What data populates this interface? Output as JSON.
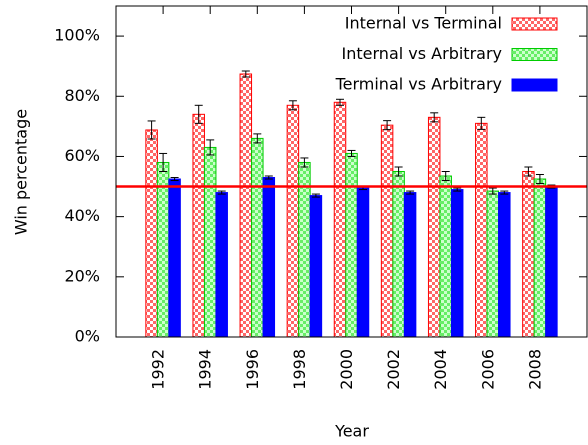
{
  "chart_data": {
    "type": "bar",
    "xlabel": "Year",
    "ylabel": "Win percentage",
    "categories": [
      "1992",
      "1994",
      "1996",
      "1998",
      "2000",
      "2002",
      "2004",
      "2006",
      "2008"
    ],
    "series": [
      {
        "name": "Internal vs Terminal",
        "color": "#ff0000",
        "pattern": "checker",
        "values": [
          68.8,
          74,
          87.4,
          77,
          78,
          70.4,
          73,
          71,
          55
        ],
        "errors": [
          3,
          3,
          1,
          1.5,
          1,
          1.5,
          1.5,
          2,
          1.5
        ]
      },
      {
        "name": "Internal vs Arbitrary",
        "color": "#00cc00",
        "pattern": "checker",
        "values": [
          58,
          63,
          66,
          58,
          61,
          55,
          53.5,
          48.5,
          52.5
        ],
        "errors": [
          3,
          2.5,
          1.5,
          1.5,
          1,
          1.5,
          1.5,
          1,
          1.5
        ]
      },
      {
        "name": "Terminal vs Arbitrary",
        "color": "#0000ff",
        "pattern": "solid",
        "values": [
          52.5,
          48,
          53,
          47,
          49.5,
          48,
          49,
          48,
          50
        ],
        "errors": [
          0.5,
          0.5,
          0.5,
          0.5,
          0.5,
          0.5,
          0.5,
          0.5,
          0.5
        ]
      }
    ],
    "reference_line": {
      "value": 50,
      "color": "#ff0000"
    },
    "ylim": [
      0,
      110
    ],
    "yticks": [
      {
        "value": 0,
        "label": "0%"
      },
      {
        "value": 20,
        "label": "20%"
      },
      {
        "value": 40,
        "label": "40%"
      },
      {
        "value": 60,
        "label": "60%"
      },
      {
        "value": 80,
        "label": "80%"
      },
      {
        "value": 100,
        "label": "100%"
      }
    ],
    "legend": "upper right"
  }
}
